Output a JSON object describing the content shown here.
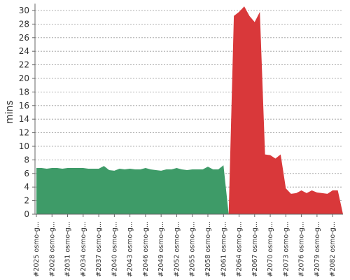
{
  "chart_data": {
    "type": "area",
    "y_label": "mins",
    "categories": [
      "#2025 osmo-g...",
      null,
      null,
      "#2028 osmo-g...",
      null,
      null,
      "#2031 osmo-g...",
      null,
      null,
      "#2034 osmo-g...",
      null,
      null,
      "#2037 osmo-g...",
      null,
      null,
      "#2040 osmo-g...",
      null,
      null,
      "#2043 osmo-g...",
      null,
      null,
      "#2046 osmo-g...",
      null,
      null,
      "#2049 osmo-g...",
      null,
      null,
      "#2052 osmo-g...",
      null,
      null,
      "#2055 osmo-g...",
      null,
      null,
      "#2058 osmo-g...",
      null,
      null,
      "#2061 osmo-g...",
      null,
      null,
      "#2064 osmo-g...",
      null,
      null,
      "#2067 osmo-g...",
      null,
      null,
      "#2070 osmo-g...",
      null,
      null,
      "#2073 osmo-g...",
      null,
      null,
      "#2076 osmo-g...",
      null,
      null,
      "#2079 osmo-g...",
      null,
      null,
      "#2082 osmo-g...",
      null,
      null
    ],
    "series": [
      {
        "color": "#3e9b68",
        "values": [
          6.8,
          6.8,
          6.7,
          6.8,
          6.8,
          6.7,
          6.8,
          6.8,
          6.8,
          6.8,
          6.7,
          6.7,
          6.7,
          7.1,
          6.5,
          6.4,
          6.7,
          6.6,
          6.7,
          6.6,
          6.6,
          6.8,
          6.6,
          6.5,
          6.4,
          6.6,
          6.6,
          6.8,
          6.6,
          6.5,
          6.6,
          6.6,
          6.6,
          7.0,
          6.6,
          6.6,
          7.2,
          0,
          null,
          null,
          null,
          null,
          null,
          null,
          null,
          null,
          null,
          null,
          null,
          null,
          null,
          null,
          null,
          null,
          null,
          null,
          null,
          null,
          null,
          null
        ]
      },
      {
        "color": "#d9383a",
        "values": [
          null,
          null,
          null,
          null,
          null,
          null,
          null,
          null,
          null,
          null,
          null,
          null,
          null,
          null,
          null,
          null,
          null,
          null,
          null,
          null,
          null,
          null,
          null,
          null,
          null,
          null,
          null,
          null,
          null,
          null,
          null,
          null,
          null,
          null,
          null,
          null,
          null,
          0,
          29.2,
          29.8,
          30.6,
          29.2,
          28.3,
          29.8,
          8.8,
          8.7,
          8.2,
          8.8,
          3.8,
          3.0,
          3.1,
          3.5,
          3.1,
          3.5,
          3.2,
          3.1,
          3.0,
          3.5,
          3.5,
          0
        ]
      }
    ],
    "ylim": [
      0,
      31
    ],
    "yticks": [
      0,
      2,
      4,
      6,
      8,
      10,
      12,
      14,
      16,
      18,
      20,
      22,
      24,
      26,
      28,
      30
    ],
    "grid": true
  }
}
